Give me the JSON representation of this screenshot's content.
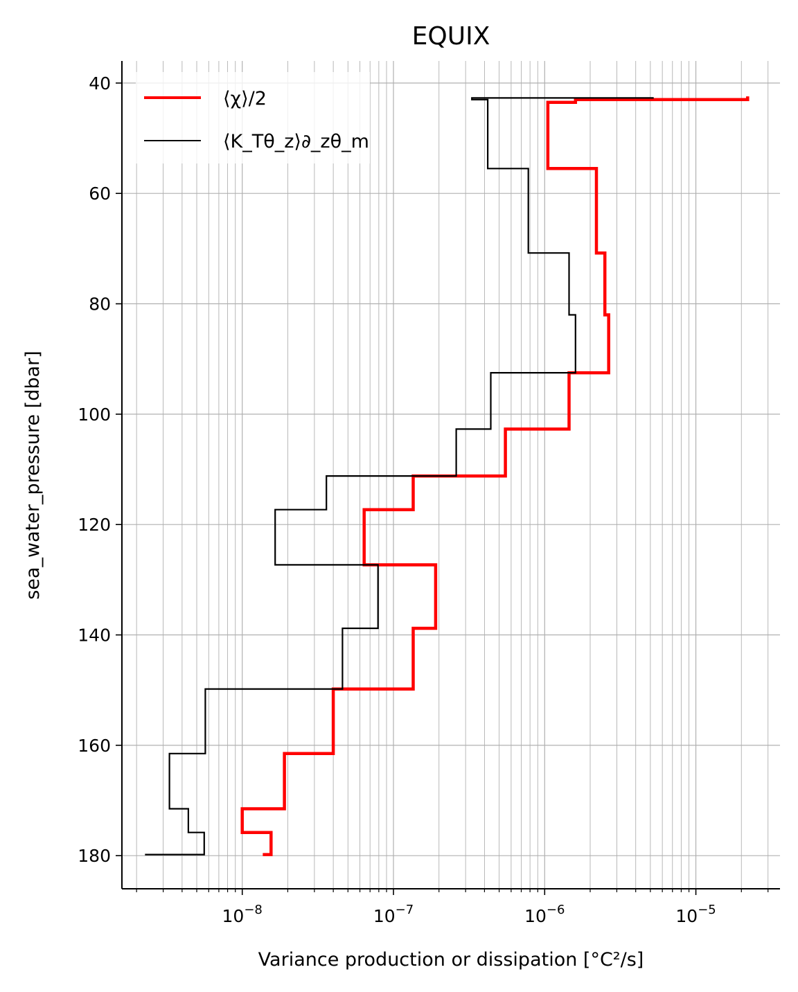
{
  "chart_data": {
    "type": "line",
    "title": "EQUIX",
    "xlabel": "Variance production or dissipation [°C²/s]",
    "ylabel": "sea_water_pressure [dbar]",
    "xscale": "log",
    "xlim": [
      1.6e-09,
      3.6e-05
    ],
    "ylim": [
      186,
      36
    ],
    "y_inverted": true,
    "grid": "major and minor",
    "legend_position": "upper left",
    "x_ticks": [
      {
        "value": 1e-08,
        "base": "10",
        "exp": "−8"
      },
      {
        "value": 1e-07,
        "base": "10",
        "exp": "−7"
      },
      {
        "value": 1e-06,
        "base": "10",
        "exp": "−6"
      },
      {
        "value": 1e-05,
        "base": "10",
        "exp": "−5"
      }
    ],
    "y_ticks": [
      40,
      60,
      80,
      100,
      120,
      140,
      160,
      180
    ],
    "series": [
      {
        "name": "⟨χ⟩/2",
        "color": "#ff0000",
        "style": "step",
        "points": [
          [
            2.2e-05,
            42.7
          ],
          [
            2.2e-05,
            43.0
          ],
          [
            1.6e-06,
            43.0
          ],
          [
            1.6e-06,
            43.5
          ],
          [
            1.05e-06,
            43.5
          ],
          [
            1.05e-06,
            55.5
          ],
          [
            2.2e-06,
            55.5
          ],
          [
            2.2e-06,
            70.8
          ],
          [
            2.5e-06,
            70.8
          ],
          [
            2.5e-06,
            82.0
          ],
          [
            2.65e-06,
            82.0
          ],
          [
            2.65e-06,
            92.5
          ],
          [
            1.45e-06,
            92.5
          ],
          [
            1.45e-06,
            102.7
          ],
          [
            5.5e-07,
            102.7
          ],
          [
            5.5e-07,
            111.2
          ],
          [
            1.35e-07,
            111.2
          ],
          [
            1.35e-07,
            117.3
          ],
          [
            6.4e-08,
            117.3
          ],
          [
            6.4e-08,
            127.3
          ],
          [
            1.9e-07,
            127.3
          ],
          [
            1.9e-07,
            138.8
          ],
          [
            1.35e-07,
            138.8
          ],
          [
            1.35e-07,
            149.8
          ],
          [
            4e-08,
            149.8
          ],
          [
            4e-08,
            161.5
          ],
          [
            1.9e-08,
            161.5
          ],
          [
            1.9e-08,
            171.5
          ],
          [
            1e-08,
            171.5
          ],
          [
            1e-08,
            175.8
          ],
          [
            1.55e-08,
            175.8
          ],
          [
            1.55e-08,
            179.8
          ],
          [
            1.4e-08,
            179.8
          ]
        ]
      },
      {
        "name": "⟨K_Tθ_z⟩∂_zθ_m",
        "color": "#000000",
        "style": "step",
        "points": [
          [
            5.2e-06,
            42.7
          ],
          [
            3.3e-07,
            42.7
          ],
          [
            3.3e-07,
            43.0
          ],
          [
            4.2e-07,
            43.0
          ],
          [
            4.2e-07,
            55.5
          ],
          [
            7.8e-07,
            55.5
          ],
          [
            7.8e-07,
            70.8
          ],
          [
            1.45e-06,
            70.8
          ],
          [
            1.45e-06,
            82.0
          ],
          [
            1.6e-06,
            82.0
          ],
          [
            1.6e-06,
            92.5
          ],
          [
            4.4e-07,
            92.5
          ],
          [
            4.4e-07,
            102.7
          ],
          [
            2.6e-07,
            102.7
          ],
          [
            2.6e-07,
            111.2
          ],
          [
            3.6e-08,
            111.2
          ],
          [
            3.6e-08,
            117.3
          ],
          [
            1.65e-08,
            117.3
          ],
          [
            1.65e-08,
            127.3
          ],
          [
            7.9e-08,
            127.3
          ],
          [
            7.9e-08,
            138.8
          ],
          [
            4.6e-08,
            138.8
          ],
          [
            4.6e-08,
            149.8
          ],
          [
            5.7e-09,
            149.8
          ],
          [
            5.7e-09,
            161.5
          ],
          [
            3.3e-09,
            161.5
          ],
          [
            3.3e-09,
            171.5
          ],
          [
            4.4e-09,
            171.5
          ],
          [
            4.4e-09,
            175.8
          ],
          [
            5.6e-09,
            175.8
          ],
          [
            5.6e-09,
            179.8
          ],
          [
            2.3e-09,
            179.8
          ]
        ]
      }
    ]
  }
}
